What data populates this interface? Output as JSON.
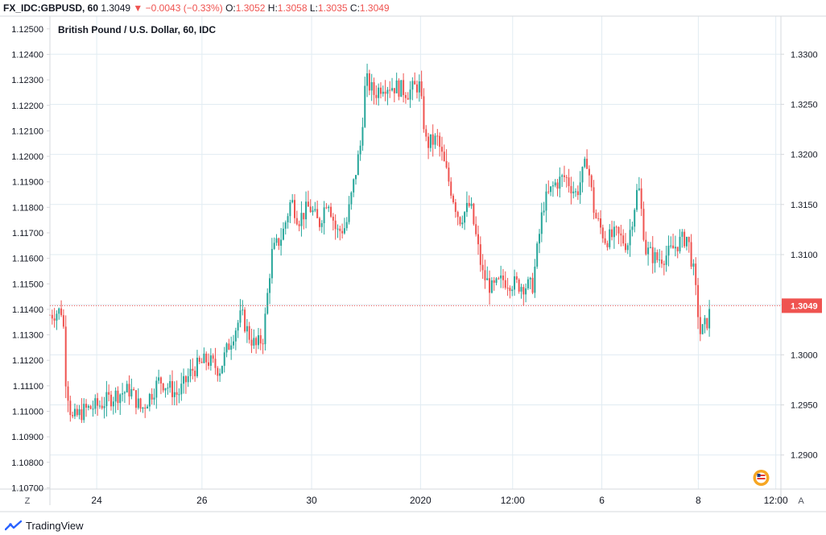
{
  "header": {
    "symbol": "FX_IDC:GBPUSD, 60",
    "last": "1.3049",
    "arrow": "▼",
    "change": "−0.0043 (−0.33%)",
    "o_label": "O:",
    "o_value": "1.3052",
    "h_label": "H:",
    "h_value": "1.3058",
    "l_label": "L:",
    "l_value": "1.3035",
    "c_label": "C:",
    "c_value": "1.3049"
  },
  "legend": "British Pound / U.S. Dollar, 60, IDC",
  "scale_buttons": {
    "left": "Z",
    "right": "A"
  },
  "footer": {
    "brand": "TradingView"
  },
  "colors": {
    "up": "#26a69a",
    "down": "#ef5350",
    "grid": "#e1ecf2",
    "axis": "#d6d8dc"
  },
  "chart_data": {
    "type": "candlestick",
    "instrument": "British Pound / U.S. Dollar",
    "interval": "60",
    "left_axis": {
      "ticks": [
        "1.12500",
        "1.12400",
        "1.12300",
        "1.12200",
        "1.12100",
        "1.12000",
        "1.11900",
        "1.11800",
        "1.11700",
        "1.11600",
        "1.11500",
        "1.11400",
        "1.11300",
        "1.11200",
        "1.11100",
        "1.11000",
        "1.10900",
        "1.10800",
        "1.10700"
      ],
      "range": [
        1.10695,
        1.1255
      ]
    },
    "right_axis": {
      "ticks": [
        "1.3300",
        "1.3250",
        "1.3200",
        "1.3150",
        "1.3100",
        "1.3050",
        "1.3000",
        "1.2950",
        "1.2900"
      ],
      "range": [
        1.2866,
        1.3338
      ]
    },
    "x_ticks": [
      {
        "label": "24",
        "t": 0.064
      },
      {
        "label": "26",
        "t": 0.208
      },
      {
        "label": "30",
        "t": 0.358
      },
      {
        "label": "2020",
        "t": 0.507
      },
      {
        "label": "12:00",
        "t": 0.633
      },
      {
        "label": "6",
        "t": 0.755
      },
      {
        "label": "8",
        "t": 0.887
      },
      {
        "label": "12:00",
        "t": 0.993
      }
    ],
    "last_price": 1.3049,
    "last_price_label": "1.3049",
    "path": [
      [
        0.0,
        1.304
      ],
      [
        0.018,
        1.3045
      ],
      [
        0.02,
        1.2985
      ],
      [
        0.03,
        1.2935
      ],
      [
        0.048,
        1.2945
      ],
      [
        0.068,
        1.295
      ],
      [
        0.09,
        1.296
      ],
      [
        0.11,
        1.2965
      ],
      [
        0.125,
        1.2945
      ],
      [
        0.15,
        1.2975
      ],
      [
        0.175,
        1.296
      ],
      [
        0.195,
        1.2985
      ],
      [
        0.215,
        1.2995
      ],
      [
        0.232,
        1.2985
      ],
      [
        0.25,
        1.302
      ],
      [
        0.262,
        1.304
      ],
      [
        0.272,
        1.302
      ],
      [
        0.282,
        1.3008
      ],
      [
        0.292,
        1.3018
      ],
      [
        0.303,
        1.31
      ],
      [
        0.318,
        1.312
      ],
      [
        0.33,
        1.3155
      ],
      [
        0.34,
        1.3135
      ],
      [
        0.355,
        1.3148
      ],
      [
        0.368,
        1.313
      ],
      [
        0.38,
        1.3158
      ],
      [
        0.392,
        1.3122
      ],
      [
        0.405,
        1.3128
      ],
      [
        0.425,
        1.321
      ],
      [
        0.432,
        1.3275
      ],
      [
        0.444,
        1.326
      ],
      [
        0.455,
        1.327
      ],
      [
        0.475,
        1.3267
      ],
      [
        0.49,
        1.3262
      ],
      [
        0.505,
        1.327
      ],
      [
        0.515,
        1.321
      ],
      [
        0.53,
        1.3215
      ],
      [
        0.545,
        1.3175
      ],
      [
        0.56,
        1.3135
      ],
      [
        0.575,
        1.315
      ],
      [
        0.592,
        1.308
      ],
      [
        0.605,
        1.3065
      ],
      [
        0.62,
        1.3075
      ],
      [
        0.64,
        1.307
      ],
      [
        0.66,
        1.3068
      ],
      [
        0.675,
        1.315
      ],
      [
        0.69,
        1.317
      ],
      [
        0.705,
        1.3178
      ],
      [
        0.72,
        1.316
      ],
      [
        0.735,
        1.3195
      ],
      [
        0.745,
        1.314
      ],
      [
        0.76,
        1.3115
      ],
      [
        0.775,
        1.312
      ],
      [
        0.79,
        1.311
      ],
      [
        0.805,
        1.317
      ],
      [
        0.815,
        1.3105
      ],
      [
        0.83,
        1.3095
      ],
      [
        0.845,
        1.31
      ],
      [
        0.86,
        1.3112
      ],
      [
        0.872,
        1.3118
      ],
      [
        0.88,
        1.3085
      ],
      [
        0.89,
        1.302
      ],
      [
        0.9,
        1.3035
      ],
      [
        0.905,
        1.3049
      ]
    ]
  }
}
